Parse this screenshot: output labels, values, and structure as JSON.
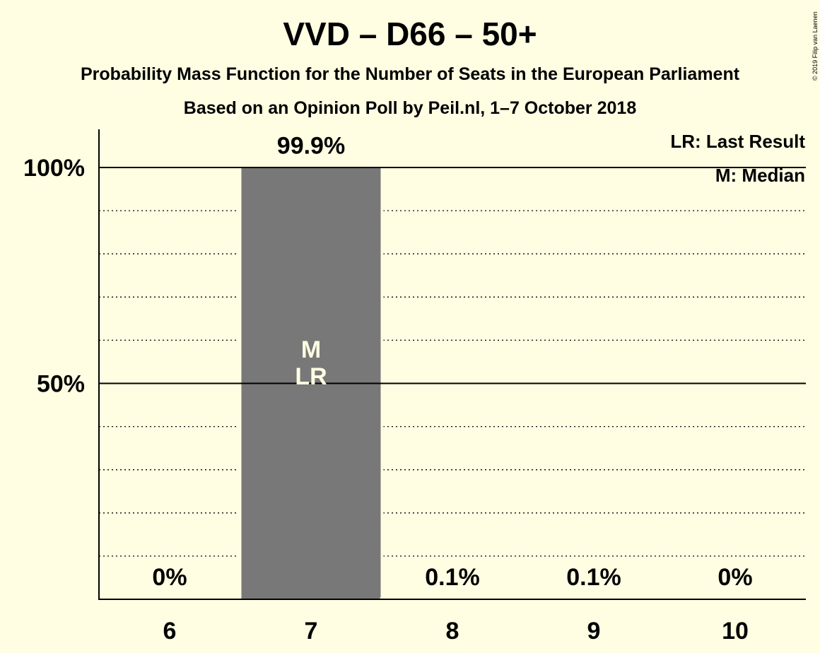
{
  "chart_data": {
    "type": "bar",
    "title": "VVD – D66 – 50+",
    "subtitle": "Probability Mass Function for the Number of Seats in the European Parliament",
    "subtitle2": "Based on an Opinion Poll by Peil.nl, 1–7 October 2018",
    "categories": [
      "6",
      "7",
      "8",
      "9",
      "10"
    ],
    "values": [
      0,
      99.9,
      0.1,
      0.1,
      0
    ],
    "value_labels": [
      "0%",
      "99.9%",
      "0.1%",
      "0.1%",
      "0%"
    ],
    "bar_markers": [
      "",
      "M\nLR",
      "",
      "",
      ""
    ],
    "ylim": [
      0,
      100
    ],
    "yticks": [
      {
        "value": 50,
        "label": "50%"
      },
      {
        "value": 100,
        "label": "100%"
      }
    ],
    "minor_grid_step": 10,
    "grid": true,
    "legend": [
      "LR: Last Result",
      "M: Median"
    ],
    "legend_position": "top-right",
    "copyright": "© 2019 Filip van Laenen",
    "colors": {
      "background": "#FFFDE2",
      "bar": "#787878",
      "bar_text": "#FFFDE2",
      "text": "#000000"
    }
  }
}
